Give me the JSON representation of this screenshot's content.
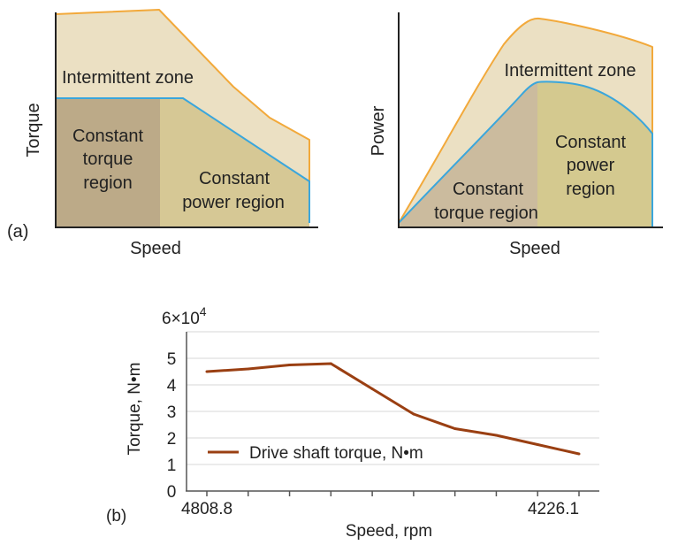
{
  "colors": {
    "intermittent_fill": "#ebe0c3",
    "left_torque_fill": "#bcaa88",
    "left_power_fill": "#d6c895",
    "right_torque_fill": "#c8b79a",
    "right_power_fill": "#d4c98f",
    "orange_line": "#f2a93b",
    "blue_line": "#3aa6dc",
    "series_line": "#9a3f12",
    "grid": "#d7d7d7",
    "axis": "#222222"
  },
  "panel_a": {
    "tag": "(a)",
    "left": {
      "ylabel": "Torque",
      "xlabel": "Speed",
      "zone_label": "Intermittent zone",
      "region1_lines": [
        "Constant",
        "torque",
        "region"
      ],
      "region2_lines": [
        "Constant",
        "power region"
      ]
    },
    "right": {
      "ylabel": "Power",
      "xlabel": "Speed",
      "zone_label": "Intermittent zone",
      "region1_lines": [
        "Constant",
        "torque region"
      ],
      "region2_lines": [
        "Constant",
        "power",
        "region"
      ]
    }
  },
  "panel_b": {
    "tag": "(b)",
    "scale_base": "6×10",
    "scale_exp": "4"
  },
  "chart_data": {
    "type": "line",
    "xlabel": "Speed, rpm",
    "ylabel": "Torque, N•m",
    "x_tick_labels": [
      "4808.8",
      "4226.1"
    ],
    "y_tick_labels": [
      "0",
      "1",
      "2",
      "3",
      "4",
      "5"
    ],
    "ylim": [
      0,
      6
    ],
    "grid": "horizontal",
    "legend_position": "bottom-left",
    "series": [
      {
        "name": "Drive shaft torque, N•m",
        "values": [
          4.5,
          4.6,
          4.75,
          4.8,
          3.85,
          2.9,
          2.35,
          2.1,
          1.75,
          1.4
        ]
      }
    ]
  }
}
